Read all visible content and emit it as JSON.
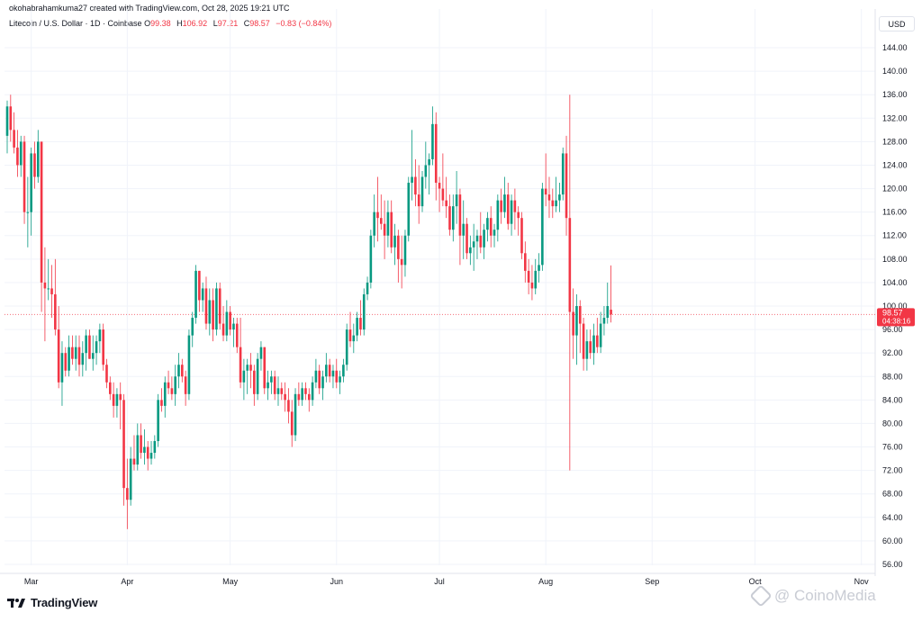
{
  "header": {
    "credit": "okohabrahamkuma27 created with TradingView.com, Oct 28, 2025 19:21 UTC"
  },
  "symbol": {
    "name": "Litecoin / U.S. Dollar · 1D · Coinbase",
    "o_label": "O",
    "o_value": "99.38",
    "h_label": "H",
    "h_value": "106.92",
    "l_label": "L",
    "l_value": "97.21",
    "c_label": "C",
    "c_value": "98.57",
    "change": "−0.83 (−0.84%)"
  },
  "currency_button": "USD",
  "price_tag": {
    "price": "98.57",
    "countdown": "04:38:16"
  },
  "logo_text": "TradingView",
  "watermark_text": "@ CoinoMedia",
  "colors": {
    "up": "#089981",
    "down": "#f23645",
    "grid": "#f0f3fa",
    "axis_text": "#131722"
  },
  "chart_data": {
    "type": "candlestick",
    "title": "Litecoin / U.S. Dollar · 1D · Coinbase",
    "xlabel": "",
    "ylabel": "",
    "ylim": [
      54,
      146
    ],
    "y_ticks": [
      56,
      60,
      64,
      68,
      72,
      76,
      80,
      84,
      88,
      92,
      96,
      100,
      104,
      108,
      112,
      116,
      120,
      124,
      128,
      132,
      136,
      140,
      144
    ],
    "x_ticks": [
      {
        "label": "Mar",
        "index": 7
      },
      {
        "label": "Apr",
        "index": 35
      },
      {
        "label": "May",
        "index": 65
      },
      {
        "label": "Jun",
        "index": 96
      },
      {
        "label": "Jul",
        "index": 126
      },
      {
        "label": "Aug",
        "index": 157
      },
      {
        "label": "Sep",
        "index": 188
      },
      {
        "label": "Oct",
        "index": 218
      },
      {
        "label": "Nov",
        "index": 249
      }
    ],
    "last_price": 98.57,
    "grid": true,
    "candles": [
      [
        129,
        135,
        126,
        134
      ],
      [
        134,
        136,
        128,
        130
      ],
      [
        130,
        133,
        126,
        127
      ],
      [
        127,
        130,
        122,
        124
      ],
      [
        124,
        129,
        122,
        128
      ],
      [
        128,
        129,
        114,
        116
      ],
      [
        116,
        122,
        110,
        116
      ],
      [
        116,
        127,
        112,
        126
      ],
      [
        126,
        128,
        120,
        122
      ],
      [
        122,
        130,
        121,
        128
      ],
      [
        128,
        128,
        99,
        104
      ],
      [
        104,
        110,
        94,
        103
      ],
      [
        103,
        108,
        101,
        103
      ],
      [
        103,
        107,
        98,
        102
      ],
      [
        102,
        108,
        95,
        96
      ],
      [
        96,
        100,
        86,
        87
      ],
      [
        87,
        94,
        83,
        92
      ],
      [
        92,
        93,
        88,
        89
      ],
      [
        89,
        95,
        88,
        93
      ],
      [
        93,
        95,
        90,
        91
      ],
      [
        91,
        95,
        89,
        93
      ],
      [
        93,
        95,
        88,
        90
      ],
      [
        90,
        94,
        88,
        92
      ],
      [
        92,
        96,
        89,
        95
      ],
      [
        95,
        96,
        91,
        91
      ],
      [
        91,
        95,
        89,
        92
      ],
      [
        92,
        95,
        90,
        94
      ],
      [
        94,
        97,
        92,
        96
      ],
      [
        96,
        97,
        89,
        90
      ],
      [
        90,
        91,
        86,
        87
      ],
      [
        87,
        88,
        84,
        85
      ],
      [
        85,
        87,
        81,
        83
      ],
      [
        83,
        86,
        81,
        85
      ],
      [
        85,
        87,
        79,
        84
      ],
      [
        84,
        85,
        66,
        69
      ],
      [
        69,
        74,
        62,
        67
      ],
      [
        67,
        76,
        66,
        74
      ],
      [
        74,
        78,
        72,
        73
      ],
      [
        73,
        80,
        72,
        78
      ],
      [
        78,
        80,
        74,
        75
      ],
      [
        75,
        79,
        73,
        76
      ],
      [
        76,
        77,
        72,
        74
      ],
      [
        74,
        77,
        73,
        75
      ],
      [
        75,
        78,
        74,
        77
      ],
      [
        77,
        85,
        76,
        84
      ],
      [
        84,
        86,
        82,
        83
      ],
      [
        83,
        88,
        81,
        87
      ],
      [
        87,
        89,
        85,
        86
      ],
      [
        86,
        88,
        84,
        85
      ],
      [
        85,
        90,
        83,
        88
      ],
      [
        88,
        92,
        86,
        90
      ],
      [
        90,
        91,
        87,
        88
      ],
      [
        88,
        89,
        83,
        85
      ],
      [
        85,
        96,
        84,
        95
      ],
      [
        95,
        99,
        93,
        98
      ],
      [
        98,
        107,
        97,
        106
      ],
      [
        106,
        106,
        99,
        101
      ],
      [
        101,
        104,
        99,
        103
      ],
      [
        103,
        105,
        96,
        97
      ],
      [
        97,
        103,
        95,
        101
      ],
      [
        101,
        103,
        94,
        96
      ],
      [
        96,
        104,
        95,
        103
      ],
      [
        103,
        104,
        96,
        97
      ],
      [
        97,
        100,
        94,
        95
      ],
      [
        95,
        101,
        94,
        99
      ],
      [
        99,
        100,
        95,
        96
      ],
      [
        96,
        98,
        93,
        97
      ],
      [
        97,
        98,
        92,
        93
      ],
      [
        93,
        98,
        86,
        87
      ],
      [
        87,
        91,
        84,
        89
      ],
      [
        89,
        91,
        85,
        90
      ],
      [
        90,
        92,
        86,
        89
      ],
      [
        89,
        90,
        83,
        85
      ],
      [
        85,
        92,
        84,
        91
      ],
      [
        91,
        94,
        89,
        93
      ],
      [
        93,
        93,
        85,
        86
      ],
      [
        86,
        89,
        84,
        87
      ],
      [
        87,
        89,
        85,
        88
      ],
      [
        88,
        89,
        84,
        85
      ],
      [
        85,
        88,
        83,
        86
      ],
      [
        86,
        87,
        84,
        85
      ],
      [
        85,
        87,
        82,
        84
      ],
      [
        84,
        86,
        80,
        82
      ],
      [
        82,
        84,
        76,
        78
      ],
      [
        78,
        86,
        77,
        85
      ],
      [
        85,
        87,
        83,
        84
      ],
      [
        84,
        87,
        83,
        86
      ],
      [
        86,
        87,
        84,
        85
      ],
      [
        85,
        86,
        82,
        84
      ],
      [
        84,
        88,
        83,
        87
      ],
      [
        87,
        91,
        86,
        89
      ],
      [
        89,
        90,
        85,
        86
      ],
      [
        86,
        89,
        84,
        88
      ],
      [
        88,
        92,
        87,
        90
      ],
      [
        90,
        91,
        87,
        88
      ],
      [
        88,
        90,
        86,
        89
      ],
      [
        89,
        91,
        86,
        87
      ],
      [
        87,
        89,
        85,
        88
      ],
      [
        88,
        91,
        87,
        90
      ],
      [
        90,
        97,
        89,
        96
      ],
      [
        96,
        99,
        93,
        94
      ],
      [
        94,
        97,
        92,
        95
      ],
      [
        95,
        99,
        94,
        98
      ],
      [
        98,
        101,
        95,
        96
      ],
      [
        96,
        103,
        95,
        102
      ],
      [
        102,
        105,
        101,
        104
      ],
      [
        104,
        113,
        103,
        112
      ],
      [
        112,
        119,
        110,
        116
      ],
      [
        116,
        122,
        111,
        115
      ],
      [
        115,
        119,
        113,
        114
      ],
      [
        114,
        118,
        108,
        112
      ],
      [
        112,
        118,
        110,
        116
      ],
      [
        116,
        118,
        109,
        110
      ],
      [
        110,
        114,
        107,
        112
      ],
      [
        112,
        113,
        104,
        108
      ],
      [
        108,
        112,
        103,
        107
      ],
      [
        107,
        113,
        105,
        112
      ],
      [
        112,
        122,
        111,
        121
      ],
      [
        121,
        130,
        118,
        122
      ],
      [
        122,
        125,
        117,
        119
      ],
      [
        119,
        124,
        114,
        117
      ],
      [
        117,
        123,
        116,
        122
      ],
      [
        122,
        128,
        120,
        124
      ],
      [
        124,
        126,
        119,
        125
      ],
      [
        125,
        134,
        124,
        131
      ],
      [
        131,
        133,
        118,
        121
      ],
      [
        121,
        122,
        116,
        120
      ],
      [
        120,
        126,
        117,
        118
      ],
      [
        118,
        122,
        115,
        117
      ],
      [
        117,
        119,
        112,
        113
      ],
      [
        113,
        119,
        111,
        117
      ],
      [
        117,
        123,
        114,
        119
      ],
      [
        119,
        120,
        107,
        112
      ],
      [
        112,
        118,
        108,
        114
      ],
      [
        114,
        115,
        108,
        109
      ],
      [
        109,
        112,
        107,
        110
      ],
      [
        110,
        114,
        106,
        111
      ],
      [
        111,
        113,
        108,
        112
      ],
      [
        112,
        116,
        109,
        110
      ],
      [
        110,
        114,
        108,
        113
      ],
      [
        113,
        116,
        111,
        115
      ],
      [
        115,
        117,
        110,
        112
      ],
      [
        112,
        114,
        110,
        113
      ],
      [
        113,
        119,
        111,
        118
      ],
      [
        118,
        120,
        114,
        116
      ],
      [
        116,
        122,
        115,
        119
      ],
      [
        119,
        121,
        113,
        114
      ],
      [
        114,
        119,
        112,
        118
      ],
      [
        118,
        120,
        113,
        116
      ],
      [
        116,
        117,
        112,
        115
      ],
      [
        115,
        116,
        108,
        109
      ],
      [
        109,
        111,
        104,
        106
      ],
      [
        106,
        108,
        102,
        104
      ],
      [
        104,
        107,
        101,
        103
      ],
      [
        103,
        108,
        102,
        106
      ],
      [
        106,
        109,
        104,
        107
      ],
      [
        107,
        121,
        106,
        120
      ],
      [
        120,
        126,
        117,
        119
      ],
      [
        119,
        122,
        115,
        118
      ],
      [
        118,
        120,
        115,
        117
      ],
      [
        117,
        122,
        116,
        118
      ],
      [
        118,
        121,
        116,
        119
      ],
      [
        119,
        127,
        118,
        126
      ],
      [
        126,
        129,
        112,
        115
      ],
      [
        115,
        136,
        72,
        99
      ],
      [
        99,
        103,
        91,
        95
      ],
      [
        95,
        102,
        90,
        100
      ],
      [
        100,
        101,
        92,
        97
      ],
      [
        97,
        98,
        89,
        91
      ],
      [
        91,
        96,
        89,
        94
      ],
      [
        94,
        96,
        91,
        92
      ],
      [
        92,
        97,
        90,
        95
      ],
      [
        95,
        98,
        92,
        93
      ],
      [
        93,
        99,
        92,
        97
      ],
      [
        97,
        100,
        95,
        98
      ],
      [
        98,
        104,
        97,
        100
      ],
      [
        99.38,
        106.92,
        97.21,
        98.57
      ]
    ]
  }
}
